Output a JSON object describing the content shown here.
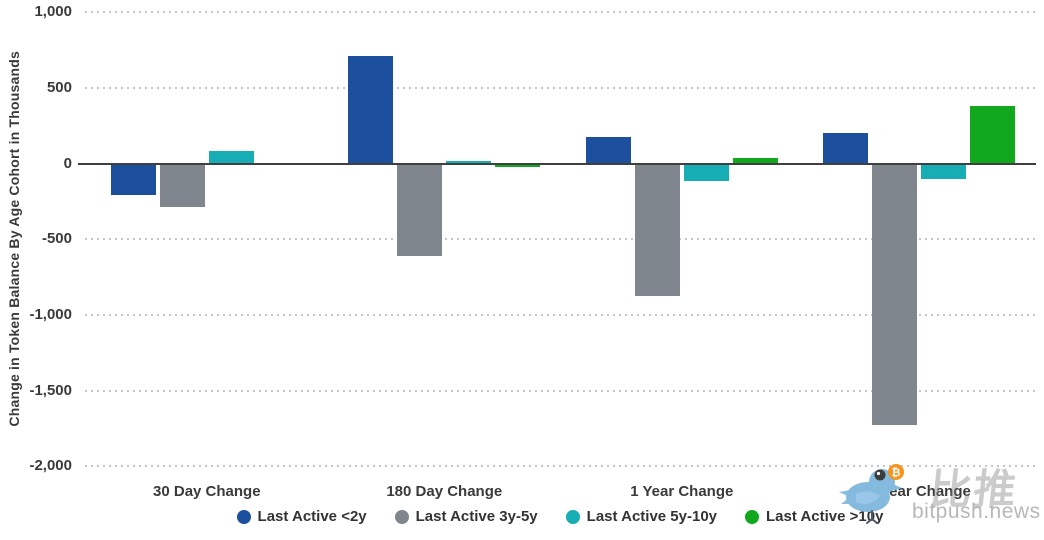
{
  "chart": {
    "y_axis_title": "Change in Token Balance By Age Cohort in Thousands"
  },
  "chart_data": {
    "type": "bar",
    "title": "",
    "xlabel": "",
    "ylabel": "Change in Token Balance By Age Cohort in Thousands",
    "categories": [
      "30 Day Change",
      "180 Day Change",
      "1 Year Change",
      "2 Year Change"
    ],
    "series": [
      {
        "name": "Last Active <2y",
        "color": "#1C4F9E",
        "values": [
          -205,
          710,
          175,
          205
        ]
      },
      {
        "name": "Last Active 3y-5y",
        "color": "#7F868E",
        "values": [
          -285,
          -610,
          -875,
          -1730
        ]
      },
      {
        "name": "Last Active 5y-10y",
        "color": "#17ADB5",
        "values": [
          85,
          15,
          -115,
          -100
        ]
      },
      {
        "name": "Last Active >10y",
        "color": "#12A81E",
        "values": [
          8,
          -25,
          38,
          380
        ]
      }
    ],
    "ylim": [
      -2000,
      1000
    ],
    "yticks": [
      1000,
      500,
      0,
      -500,
      -1000,
      -1500,
      -2000
    ],
    "ytick_labels": [
      "1,000",
      "500",
      "0",
      "-500",
      "-1,000",
      "-1,500",
      "-2,000"
    ],
    "grid": "horizontal dotted, zero line solid dark",
    "legend_position": "bottom center",
    "units": "thousands of tokens"
  },
  "watermark": {
    "chinese": "比推",
    "site": "bitpush.news",
    "bird_color": "#85BADF",
    "bird_dark": "#4d5a66",
    "coin_color": "#F7941D",
    "coin_symbol": "₿"
  }
}
